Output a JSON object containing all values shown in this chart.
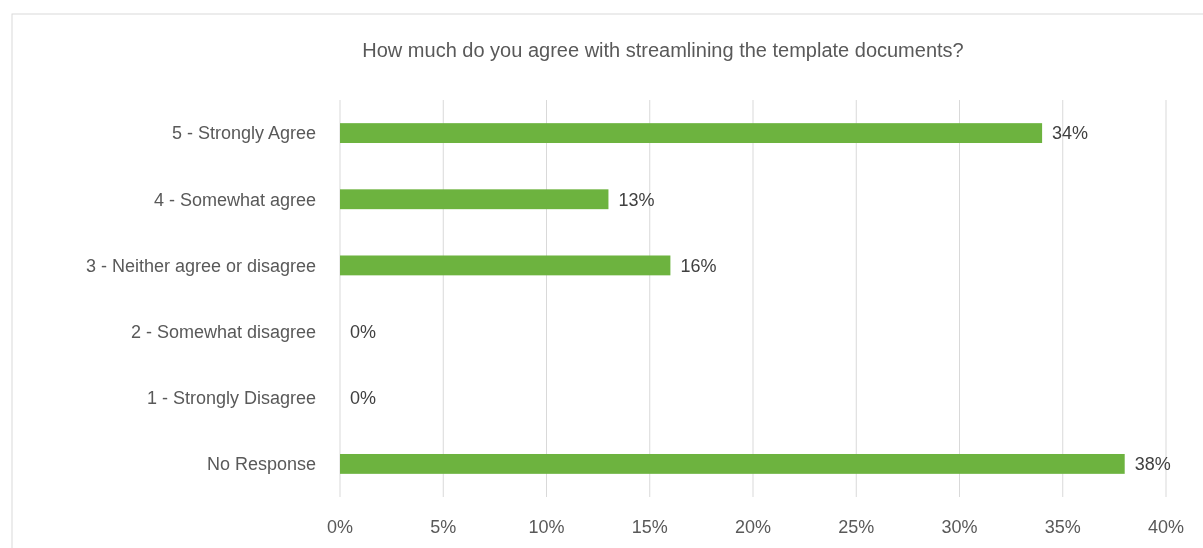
{
  "chart_data": {
    "type": "bar",
    "orientation": "horizontal",
    "title": "How much do you agree with streamlining the template documents?",
    "categories": [
      "5 - Strongly Agree",
      "4 - Somewhat agree",
      "3 - Neither agree or disagree",
      "2 - Somewhat disagree",
      "1 - Strongly Disagree",
      "No Response"
    ],
    "values": [
      34,
      13,
      16,
      0,
      0,
      38
    ],
    "value_labels": [
      "34%",
      "13%",
      "16%",
      "0%",
      "0%",
      "38%"
    ],
    "color": "#6db33f",
    "xlim": [
      0,
      40
    ],
    "xticks": [
      {
        "value": 0,
        "label": "0%"
      },
      {
        "value": 5,
        "label": "5%"
      },
      {
        "value": 10,
        "label": "10%"
      },
      {
        "value": 15,
        "label": "15%"
      },
      {
        "value": 20,
        "label": "20%"
      },
      {
        "value": 25,
        "label": "25%"
      },
      {
        "value": 30,
        "label": "30%"
      },
      {
        "value": 35,
        "label": "35%"
      },
      {
        "value": 40,
        "label": "40%"
      }
    ],
    "grid": "x"
  }
}
